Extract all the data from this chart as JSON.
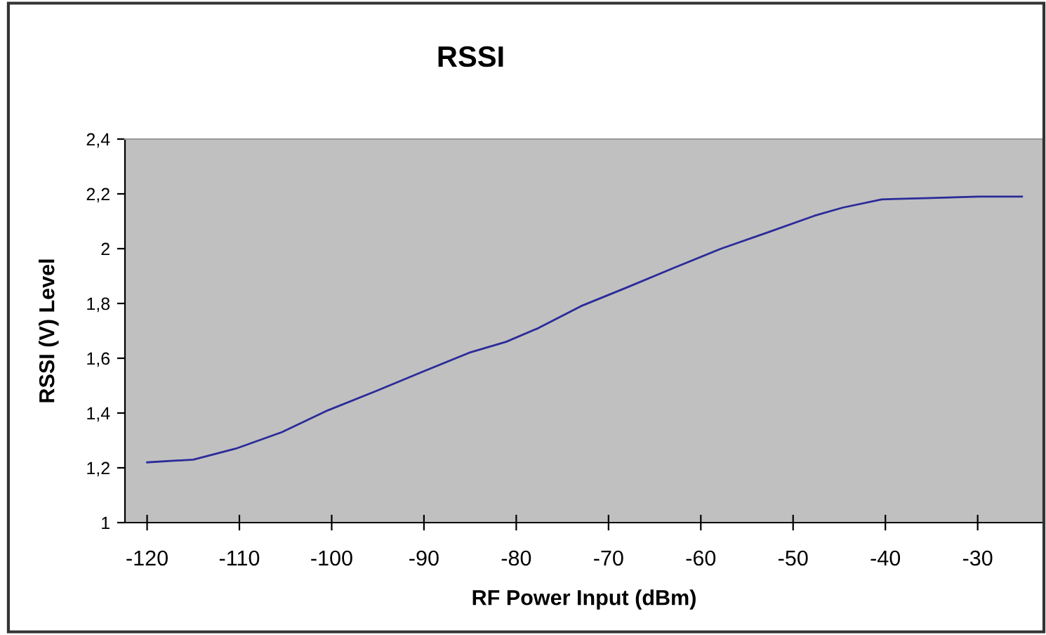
{
  "chart_data": {
    "type": "line",
    "title": "RSSI",
    "xlabel": "RF Power Input (dBm)",
    "ylabel": "RSSI (V) Level",
    "x": [
      -120,
      -115,
      -110.4,
      -105.4,
      -100.4,
      -95.2,
      -90.2,
      -85.1,
      -81.1,
      -77.6,
      -73,
      -67.9,
      -62.9,
      -57.8,
      -52.7,
      -47.7,
      -44.6,
      -40.4,
      -35,
      -29.9,
      -25.2
    ],
    "series": [
      {
        "color": "#2b2b9a",
        "values": [
          1.22,
          1.23,
          1.27,
          1.33,
          1.41,
          1.48,
          1.55,
          1.62,
          1.66,
          1.71,
          1.79,
          1.86,
          1.93,
          2.0,
          2.06,
          2.12,
          2.15,
          2.18,
          2.185,
          2.19,
          2.19
        ]
      }
    ],
    "xlim": [
      -122.4,
      -22.9
    ],
    "xticks": [
      -120,
      -110,
      -100,
      -90,
      -80,
      -70,
      -60,
      -50,
      -40,
      -30
    ],
    "ylim": [
      1,
      2.4
    ],
    "yticks": [
      {
        "value": 1,
        "label": "1"
      },
      {
        "value": 1.2,
        "label": "1,2"
      },
      {
        "value": 1.4,
        "label": "1,4"
      },
      {
        "value": 1.6,
        "label": "1,6"
      },
      {
        "value": 1.8,
        "label": "1,8"
      },
      {
        "value": 2,
        "label": "2"
      },
      {
        "value": 2.2,
        "label": "2,2"
      },
      {
        "value": 2.4,
        "label": "2,4"
      }
    ],
    "grid": false,
    "marker": "none",
    "line_style": "solid"
  }
}
